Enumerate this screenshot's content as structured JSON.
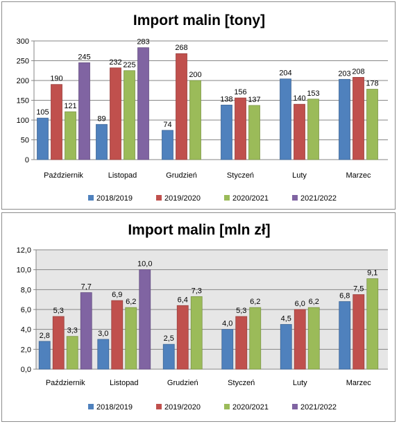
{
  "chart_data": [
    {
      "type": "bar",
      "title": "Import malin [tony]",
      "categories": [
        "Październik",
        "Listopad",
        "Grudzień",
        "Styczeń",
        "Luty",
        "Marzec"
      ],
      "ylim": [
        0,
        300
      ],
      "yticks": [
        "0",
        "50",
        "100",
        "150",
        "200",
        "250",
        "300"
      ],
      "grid": true,
      "legend_position": "bottom",
      "decimal_comma": false,
      "series": [
        {
          "name": "2018/2019",
          "color": "#4f81bd",
          "values": [
            105,
            89,
            74,
            138,
            204,
            203
          ]
        },
        {
          "name": "2019/2020",
          "color": "#c0504d",
          "values": [
            190,
            232,
            268,
            156,
            140,
            208
          ]
        },
        {
          "name": "2020/2021",
          "color": "#9bbb59",
          "values": [
            121,
            225,
            200,
            137,
            153,
            178
          ]
        },
        {
          "name": "2021/2022",
          "color": "#8064a2",
          "values": [
            245,
            283,
            null,
            null,
            null,
            null
          ]
        }
      ]
    },
    {
      "type": "bar",
      "title": "Import malin [mln zł]",
      "categories": [
        "Październik",
        "Listopad",
        "Grudzień",
        "Styczeń",
        "Luty",
        "Marzec"
      ],
      "ylim": [
        0,
        12
      ],
      "yticks": [
        "0,0",
        "2,0",
        "4,0",
        "6,0",
        "8,0",
        "10,0",
        "12,0"
      ],
      "grid": true,
      "legend_position": "bottom",
      "decimal_comma": true,
      "series": [
        {
          "name": "2018/2019",
          "color": "#4f81bd",
          "values": [
            2.8,
            3.0,
            2.5,
            4.0,
            4.5,
            6.8
          ]
        },
        {
          "name": "2019/2020",
          "color": "#c0504d",
          "values": [
            5.3,
            6.9,
            6.4,
            5.3,
            6.0,
            7.5
          ]
        },
        {
          "name": "2020/2021",
          "color": "#9bbb59",
          "values": [
            3.3,
            6.2,
            7.3,
            6.2,
            6.2,
            9.1
          ]
        },
        {
          "name": "2021/2022",
          "color": "#8064a2",
          "values": [
            7.7,
            10.0,
            null,
            null,
            null,
            null
          ]
        }
      ]
    }
  ]
}
